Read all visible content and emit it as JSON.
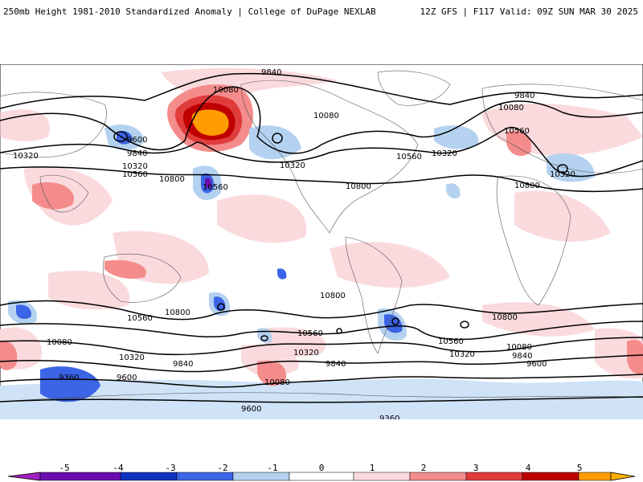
{
  "header": {
    "title": "250mb Height 1981-2010 Standardized Anomaly | College of DuPage NEXLAB",
    "model_info": "12Z GFS | F117 Valid: 09Z SUN MAR 30 2025"
  },
  "contour_labels": {
    "c9840_n": "9840",
    "c10080_ak": "10080",
    "c10080_na": "10080",
    "c9600_pac": "9600",
    "c9840_pac": "9840",
    "c10320_w": "10320",
    "c10320_pac": "10320",
    "c10560_pac": "10560",
    "c10800_pac": "10800",
    "c10560_low": "10560",
    "c10320_na": "10320",
    "c10560_na": "10560",
    "c10800_atl": "10800",
    "c9840_eu": "9840",
    "c10080_eu": "10080",
    "c10560_eu": "10560",
    "c10320_eu": "10320",
    "c10800_af": "10800",
    "c10800_sp": "10800",
    "c10800_sp2": "10800",
    "c10560_sp": "10560",
    "c10320_sp": "10320",
    "c10080_sp": "10080",
    "c10560_sa": "10560",
    "c10320_sa": "10320",
    "c10800_sa": "10800",
    "c10560_satl": "10560",
    "c10320_satl": "10320",
    "c10080_satl": "10080",
    "c9840_satl": "9840",
    "c9600_satl": "9600",
    "c10080_so": "10080",
    "c10320_so": "10320",
    "c9840_so": "9840",
    "c9600_so": "9600",
    "c9360_so": "9360",
    "c9600_so2": "9600",
    "c9360_so2": "9360",
    "c10560_so": "10560"
  },
  "colorbar": {
    "ticks": [
      "-5",
      "-4",
      "-3",
      "-2",
      "-1",
      "0",
      "1",
      "2",
      "3",
      "4",
      "5"
    ],
    "colors": [
      "#a020c0",
      "#6a0dad",
      "#1030c0",
      "#3c64e6",
      "#b4d2f0",
      "#ffffff",
      "#fadadd",
      "#f48c8c",
      "#e03c3c",
      "#c00000",
      "#ff9c00"
    ]
  }
}
